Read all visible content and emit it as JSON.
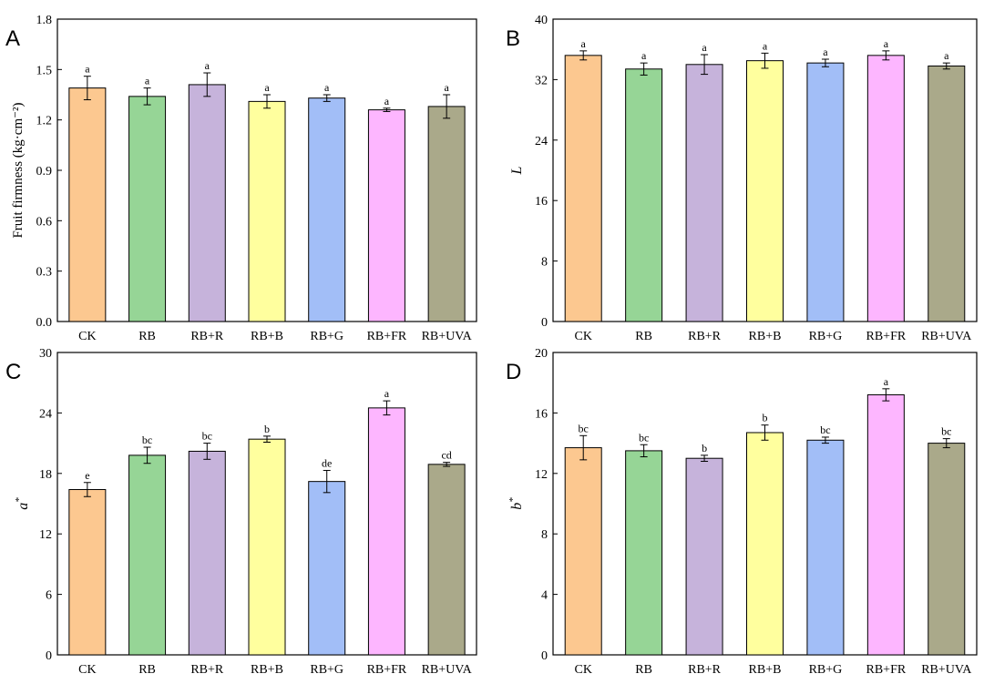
{
  "chart_data": [
    {
      "type": "bar",
      "panel": "A",
      "ylabel": "Fruit firmness (kg·cm⁻²)",
      "ylim": [
        0,
        1.8
      ],
      "yticks": [
        "0.0",
        "0.3",
        "0.6",
        "0.9",
        "1.2",
        "1.5",
        "1.8"
      ],
      "categories": [
        "CK",
        "RB",
        "RB+R",
        "RB+B",
        "RB+G",
        "RB+FR",
        "RB+UVA"
      ],
      "values": [
        1.39,
        1.34,
        1.41,
        1.31,
        1.33,
        1.26,
        1.28
      ],
      "errors": [
        0.07,
        0.05,
        0.07,
        0.04,
        0.02,
        0.01,
        0.07
      ],
      "letters": [
        "a",
        "a",
        "a",
        "a",
        "a",
        "a",
        "a"
      ]
    },
    {
      "type": "bar",
      "panel": "B",
      "ylabel": "L",
      "ylim": [
        0,
        40
      ],
      "yticks": [
        "0",
        "8",
        "16",
        "24",
        "32",
        "40"
      ],
      "categories": [
        "CK",
        "RB",
        "RB+R",
        "RB+B",
        "RB+G",
        "RB+FR",
        "RB+UVA"
      ],
      "values": [
        35.2,
        33.4,
        34.0,
        34.5,
        34.2,
        35.2,
        33.8
      ],
      "errors": [
        0.6,
        0.8,
        1.3,
        1.0,
        0.5,
        0.6,
        0.4
      ],
      "letters": [
        "a",
        "a",
        "a",
        "a",
        "a",
        "a",
        "a"
      ]
    },
    {
      "type": "bar",
      "panel": "C",
      "ylabel": "a*",
      "ylim": [
        0,
        30
      ],
      "yticks": [
        "0",
        "6",
        "12",
        "18",
        "24",
        "30"
      ],
      "categories": [
        "CK",
        "RB",
        "RB+R",
        "RB+B",
        "RB+G",
        "RB+FR",
        "RB+UVA"
      ],
      "values": [
        16.4,
        19.8,
        20.2,
        21.4,
        17.2,
        24.5,
        18.9
      ],
      "errors": [
        0.7,
        0.8,
        0.8,
        0.3,
        1.1,
        0.7,
        0.2
      ],
      "letters": [
        "e",
        "bc",
        "bc",
        "b",
        "de",
        "a",
        "cd"
      ]
    },
    {
      "type": "bar",
      "panel": "D",
      "ylabel": "b*",
      "ylim": [
        0,
        20
      ],
      "yticks": [
        "0",
        "4",
        "8",
        "12",
        "16",
        "20"
      ],
      "categories": [
        "CK",
        "RB",
        "RB+R",
        "RB+B",
        "RB+G",
        "RB+FR",
        "RB+UVA"
      ],
      "values": [
        13.7,
        13.5,
        13.0,
        14.7,
        14.2,
        17.2,
        14.0
      ],
      "errors": [
        0.8,
        0.4,
        0.2,
        0.5,
        0.2,
        0.4,
        0.3
      ],
      "letters": [
        "bc",
        "bc",
        "b",
        "b",
        "bc",
        "a",
        "bc"
      ]
    }
  ],
  "bar_colors": [
    "#FCC890",
    "#96D596",
    "#C6B3DB",
    "#FFFF9E",
    "#A2BEF7",
    "#FDB6FF",
    "#AAA98A"
  ]
}
